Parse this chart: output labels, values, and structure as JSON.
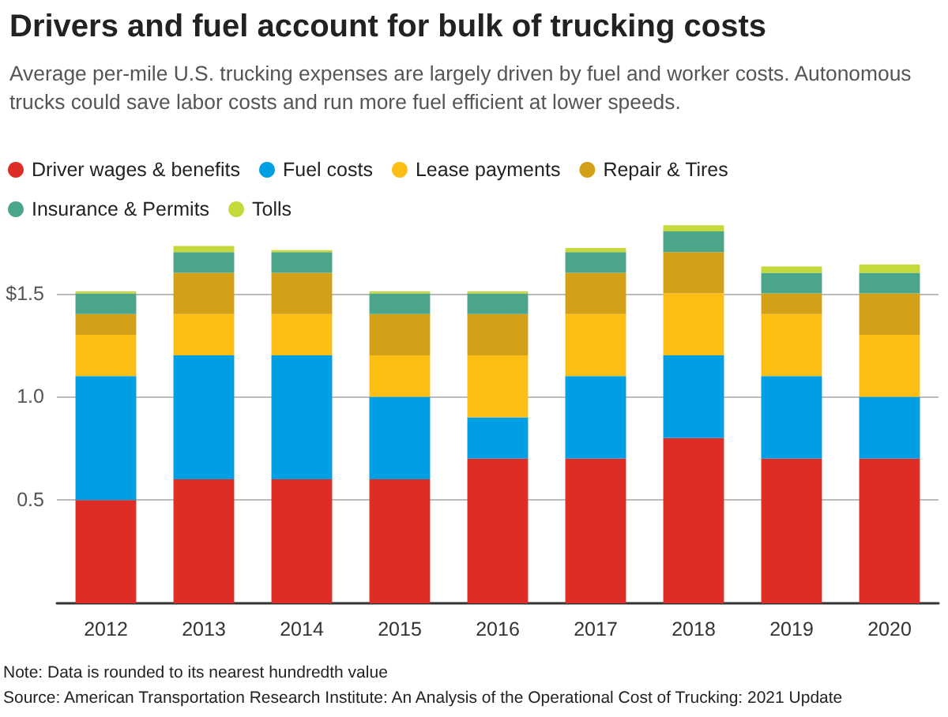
{
  "chart_data": {
    "type": "bar",
    "stacked": true,
    "title": "Drivers and fuel account for bulk of trucking costs",
    "subtitle": "Average per-mile U.S. trucking expenses are largely driven by fuel and worker costs. Autonomous trucks could save labor costs and run more fuel efficient at lower speeds.",
    "categories": [
      "2012",
      "2013",
      "2014",
      "2015",
      "2016",
      "2017",
      "2018",
      "2019",
      "2020"
    ],
    "series": [
      {
        "name": "Driver wages & benefits",
        "color": "#de2d26",
        "values": [
          0.5,
          0.6,
          0.6,
          0.6,
          0.7,
          0.7,
          0.8,
          0.7,
          0.7
        ]
      },
      {
        "name": "Fuel costs",
        "color": "#009fe3",
        "values": [
          0.6,
          0.6,
          0.6,
          0.4,
          0.2,
          0.4,
          0.4,
          0.4,
          0.3
        ]
      },
      {
        "name": "Lease payments",
        "color": "#fdbf15",
        "values": [
          0.2,
          0.2,
          0.2,
          0.2,
          0.3,
          0.3,
          0.3,
          0.3,
          0.3
        ]
      },
      {
        "name": "Repair & Tires",
        "color": "#d4a017",
        "values": [
          0.1,
          0.2,
          0.2,
          0.2,
          0.2,
          0.2,
          0.2,
          0.1,
          0.2
        ]
      },
      {
        "name": "Insurance & Permits",
        "color": "#4aa58a",
        "values": [
          0.1,
          0.1,
          0.1,
          0.1,
          0.1,
          0.1,
          0.1,
          0.1,
          0.1
        ]
      },
      {
        "name": "Tolls",
        "color": "#c5d93a",
        "values": [
          0.01,
          0.03,
          0.01,
          0.01,
          0.01,
          0.02,
          0.03,
          0.03,
          0.04
        ]
      }
    ],
    "ylim": [
      0,
      1.85
    ],
    "yticks": [
      {
        "value": 0.5,
        "label": "0.5"
      },
      {
        "value": 1,
        "label": "1.0"
      },
      {
        "value": 1.5,
        "label": "$1.5"
      }
    ],
    "grid": "y",
    "legend": "top left",
    "annotations": [
      "Note: Data is rounded to its nearest hundredth value",
      "Source: American Transportation Research Institute: An Analysis of the Operational Cost of Trucking: 2021 Update"
    ]
  }
}
